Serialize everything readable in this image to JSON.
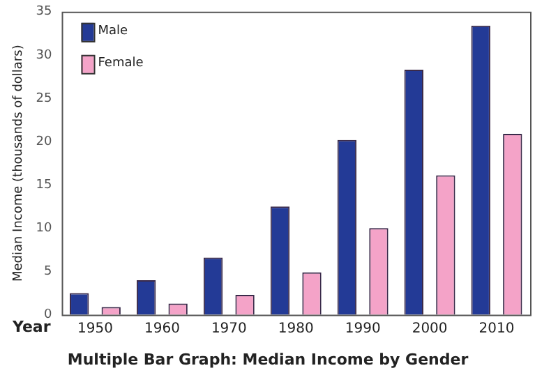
{
  "chart_data": {
    "type": "bar",
    "title": "Multiple Bar Graph: Median Income by Gender",
    "xlabel": "Year",
    "ylabel": "Median Income (thousands of dollars)",
    "categories": [
      "1950",
      "1960",
      "1970",
      "1980",
      "1990",
      "2000",
      "2010"
    ],
    "series": [
      {
        "name": "Male",
        "color": "#233a96",
        "values": [
          2.5,
          4.0,
          6.6,
          12.5,
          20.2,
          28.3,
          33.4
        ]
      },
      {
        "name": "Female",
        "color": "#f4a3c8",
        "values": [
          0.9,
          1.3,
          2.3,
          4.9,
          10.0,
          16.1,
          20.9
        ]
      }
    ],
    "ylim": [
      0,
      35
    ],
    "yticks": [
      0,
      5,
      10,
      15,
      20,
      25,
      30,
      35
    ],
    "grid": false,
    "legend": "top left"
  }
}
